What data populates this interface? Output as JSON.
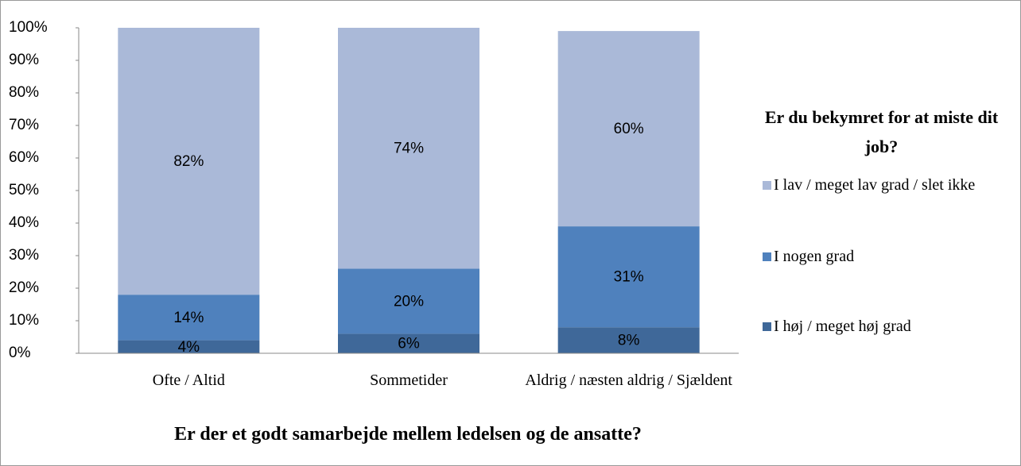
{
  "chart_data": {
    "type": "stacked-bar-percent",
    "categories": [
      "Ofte / Altid",
      "Sommetider",
      "Aldrig / næsten aldrig / Sjældent"
    ],
    "x_label": "Er der et godt samarbejde mellem ledelsen og de ansatte?",
    "legend_title": "Er du bekymret for at miste dit job?",
    "legend_position": "right",
    "series": [
      {
        "name": "I høj / meget høj grad",
        "color": "#3f6899",
        "values": [
          4,
          6,
          8
        ],
        "value_labels": [
          "4%",
          "6%",
          "8%"
        ]
      },
      {
        "name": "I nogen grad",
        "color": "#4f81bd",
        "values": [
          14,
          20,
          31
        ],
        "value_labels": [
          "14%",
          "20%",
          "31%"
        ]
      },
      {
        "name": "I lav / meget lav grad / slet ikke",
        "color": "#aab9d8",
        "values": [
          82,
          74,
          60
        ],
        "value_labels": [
          "82%",
          "74%",
          "60%"
        ]
      }
    ],
    "ylim": [
      0,
      100
    ],
    "yticks": [
      {
        "value": 0,
        "label": "0%"
      },
      {
        "value": 10,
        "label": "10%"
      },
      {
        "value": 20,
        "label": "20%"
      },
      {
        "value": 30,
        "label": "30%"
      },
      {
        "value": 40,
        "label": "40%"
      },
      {
        "value": 50,
        "label": "50%"
      },
      {
        "value": 60,
        "label": "60%"
      },
      {
        "value": 70,
        "label": "70%"
      },
      {
        "value": 80,
        "label": "80%"
      },
      {
        "value": 90,
        "label": "90%"
      },
      {
        "value": 100,
        "label": "100%"
      }
    ]
  }
}
